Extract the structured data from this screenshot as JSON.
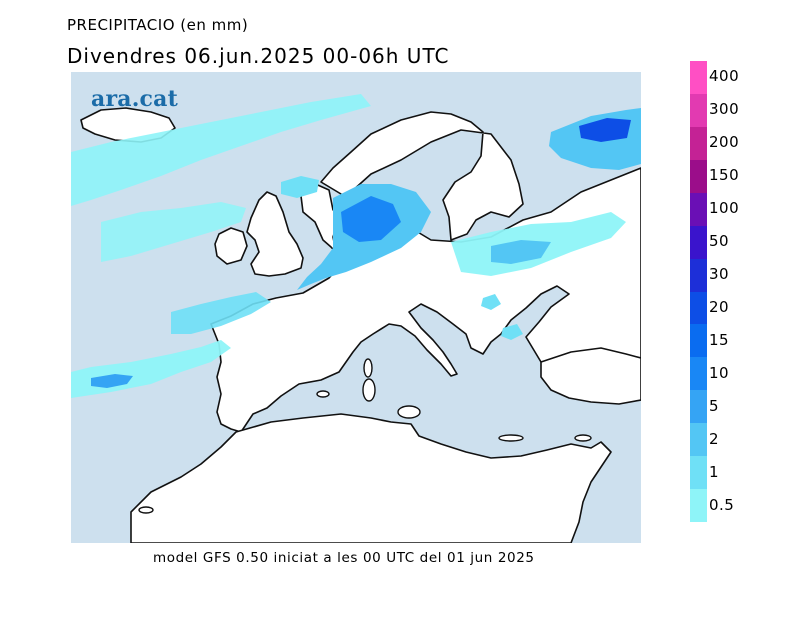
{
  "header": {
    "title": "PRECIPITACIO (en mm)",
    "subtitle": "Divendres  06.jun.2025 00-06h UTC"
  },
  "map": {
    "watermark": "ara.cat",
    "sea_color": "#cde0ee",
    "land_color": "#ffffff",
    "coast_color": "#111111"
  },
  "footer": {
    "note": "model GFS 0.50 iniciat a les 00 UTC del 01 jun 2025"
  },
  "legend": {
    "bins": [
      {
        "label": "400",
        "color": "#ff4fc4"
      },
      {
        "label": "300",
        "color": "#e23ab1"
      },
      {
        "label": "200",
        "color": "#c42295"
      },
      {
        "label": "150",
        "color": "#9b0d8a"
      },
      {
        "label": "100",
        "color": "#6a0fb5"
      },
      {
        "label": "50",
        "color": "#3a14cc"
      },
      {
        "label": "30",
        "color": "#1d2fd8"
      },
      {
        "label": "20",
        "color": "#0d4ee6"
      },
      {
        "label": "15",
        "color": "#0a6cf0"
      },
      {
        "label": "10",
        "color": "#1987f5"
      },
      {
        "label": "5",
        "color": "#35a4f4"
      },
      {
        "label": "2",
        "color": "#53c6f4"
      },
      {
        "label": "1",
        "color": "#6fe0f6"
      },
      {
        "label": "0.5",
        "color": "#8ef4f8"
      }
    ]
  }
}
